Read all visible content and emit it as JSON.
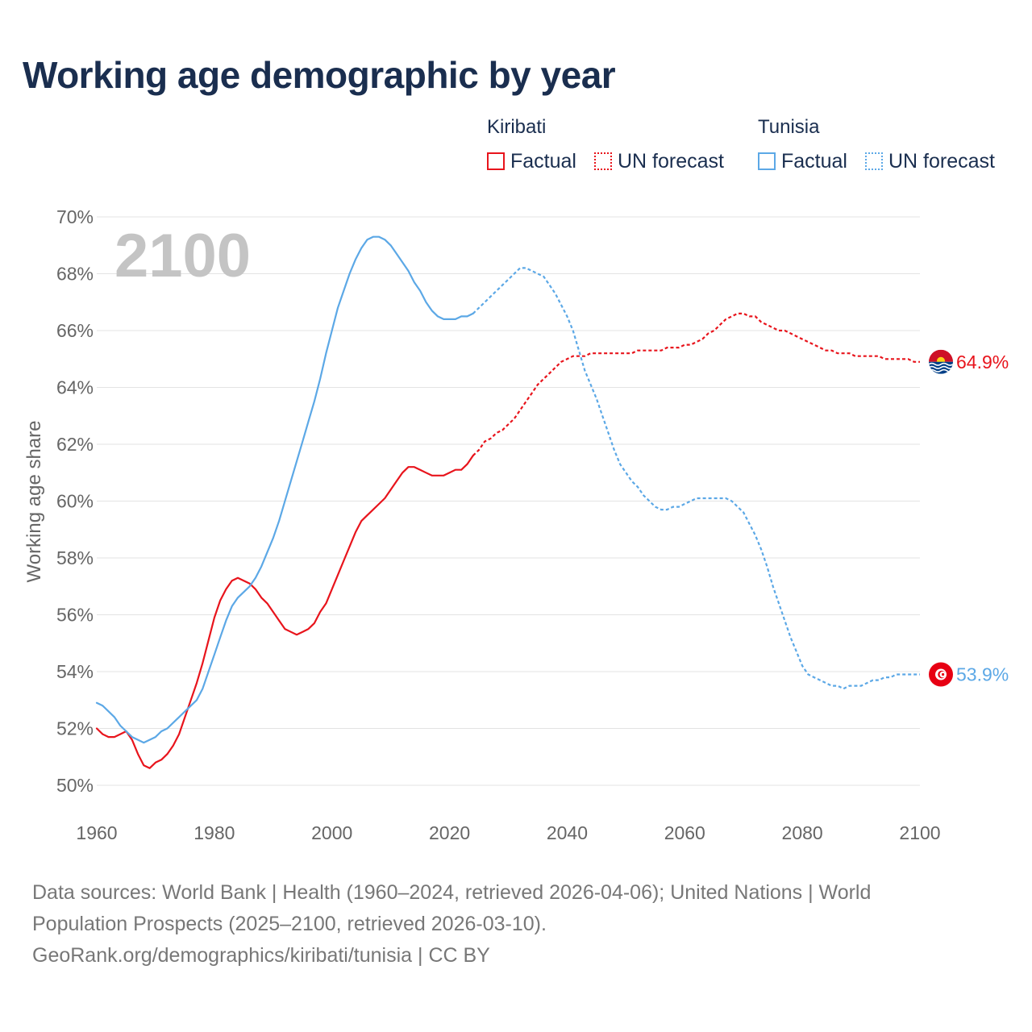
{
  "title": "Working age demographic by year",
  "legend": {
    "groups": [
      {
        "country": "Kiribati",
        "factual_label": "Factual",
        "forecast_label": "UN forecast",
        "color": "#e8141c"
      },
      {
        "country": "Tunisia",
        "factual_label": "Factual",
        "forecast_label": "UN forecast",
        "color": "#5ca8e6"
      }
    ]
  },
  "footer": {
    "line1": "Data sources: World Bank | Health (1960–2024, retrieved 2026-04-06); United Nations | World",
    "line2": "Population Prospects (2025–2100, retrieved 2026-03-10).",
    "line3": "GeoRank.org/demographics/kiribati/tunisia | CC BY"
  },
  "chart_data": {
    "type": "line",
    "title": "Working age demographic by year",
    "ylabel": "Working age share",
    "xlabel": "",
    "year_watermark": "2100",
    "xlim": [
      1960,
      2100
    ],
    "ylim": [
      50,
      70
    ],
    "xticks": [
      "1960",
      "1980",
      "2000",
      "2020",
      "2040",
      "2060",
      "2080",
      "2100"
    ],
    "yticks": [
      "50%",
      "52%",
      "54%",
      "56%",
      "58%",
      "60%",
      "62%",
      "64%",
      "66%",
      "68%",
      "70%"
    ],
    "grid": true,
    "factual_range": [
      1960,
      2024
    ],
    "forecast_range": [
      2025,
      2100
    ],
    "series": [
      {
        "name": "Kiribati",
        "color": "#e8141c",
        "end_label": "64.9%",
        "flag_icon": "kiribati-flag-icon",
        "points": [
          [
            1960,
            52.0
          ],
          [
            1961,
            51.8
          ],
          [
            1962,
            51.7
          ],
          [
            1963,
            51.7
          ],
          [
            1964,
            51.8
          ],
          [
            1965,
            51.9
          ],
          [
            1966,
            51.6
          ],
          [
            1967,
            51.1
          ],
          [
            1968,
            50.7
          ],
          [
            1969,
            50.6
          ],
          [
            1970,
            50.8
          ],
          [
            1971,
            50.9
          ],
          [
            1972,
            51.1
          ],
          [
            1973,
            51.4
          ],
          [
            1974,
            51.8
          ],
          [
            1975,
            52.4
          ],
          [
            1976,
            53.0
          ],
          [
            1977,
            53.6
          ],
          [
            1978,
            54.3
          ],
          [
            1979,
            55.1
          ],
          [
            1980,
            55.9
          ],
          [
            1981,
            56.5
          ],
          [
            1982,
            56.9
          ],
          [
            1983,
            57.2
          ],
          [
            1984,
            57.3
          ],
          [
            1985,
            57.2
          ],
          [
            1986,
            57.1
          ],
          [
            1987,
            56.9
          ],
          [
            1988,
            56.6
          ],
          [
            1989,
            56.4
          ],
          [
            1990,
            56.1
          ],
          [
            1991,
            55.8
          ],
          [
            1992,
            55.5
          ],
          [
            1993,
            55.4
          ],
          [
            1994,
            55.3
          ],
          [
            1995,
            55.4
          ],
          [
            1996,
            55.5
          ],
          [
            1997,
            55.7
          ],
          [
            1998,
            56.1
          ],
          [
            1999,
            56.4
          ],
          [
            2000,
            56.9
          ],
          [
            2001,
            57.4
          ],
          [
            2002,
            57.9
          ],
          [
            2003,
            58.4
          ],
          [
            2004,
            58.9
          ],
          [
            2005,
            59.3
          ],
          [
            2006,
            59.5
          ],
          [
            2007,
            59.7
          ],
          [
            2008,
            59.9
          ],
          [
            2009,
            60.1
          ],
          [
            2010,
            60.4
          ],
          [
            2011,
            60.7
          ],
          [
            2012,
            61.0
          ],
          [
            2013,
            61.2
          ],
          [
            2014,
            61.2
          ],
          [
            2015,
            61.1
          ],
          [
            2016,
            61.0
          ],
          [
            2017,
            60.9
          ],
          [
            2018,
            60.9
          ],
          [
            2019,
            60.9
          ],
          [
            2020,
            61.0
          ],
          [
            2021,
            61.1
          ],
          [
            2022,
            61.1
          ],
          [
            2023,
            61.3
          ],
          [
            2024,
            61.6
          ],
          [
            2025,
            61.8
          ],
          [
            2026,
            62.1
          ],
          [
            2027,
            62.2
          ],
          [
            2028,
            62.4
          ],
          [
            2029,
            62.5
          ],
          [
            2030,
            62.7
          ],
          [
            2031,
            62.9
          ],
          [
            2032,
            63.2
          ],
          [
            2033,
            63.5
          ],
          [
            2034,
            63.8
          ],
          [
            2035,
            64.1
          ],
          [
            2036,
            64.3
          ],
          [
            2037,
            64.5
          ],
          [
            2038,
            64.7
          ],
          [
            2039,
            64.9
          ],
          [
            2040,
            65.0
          ],
          [
            2041,
            65.1
          ],
          [
            2042,
            65.1
          ],
          [
            2043,
            65.1
          ],
          [
            2044,
            65.2
          ],
          [
            2045,
            65.2
          ],
          [
            2046,
            65.2
          ],
          [
            2047,
            65.2
          ],
          [
            2048,
            65.2
          ],
          [
            2049,
            65.2
          ],
          [
            2050,
            65.2
          ],
          [
            2051,
            65.2
          ],
          [
            2052,
            65.3
          ],
          [
            2053,
            65.3
          ],
          [
            2054,
            65.3
          ],
          [
            2055,
            65.3
          ],
          [
            2056,
            65.3
          ],
          [
            2057,
            65.4
          ],
          [
            2058,
            65.4
          ],
          [
            2059,
            65.4
          ],
          [
            2060,
            65.5
          ],
          [
            2061,
            65.5
          ],
          [
            2062,
            65.6
          ],
          [
            2063,
            65.7
          ],
          [
            2064,
            65.9
          ],
          [
            2065,
            66.0
          ],
          [
            2066,
            66.2
          ],
          [
            2067,
            66.4
          ],
          [
            2068,
            66.5
          ],
          [
            2069,
            66.6
          ],
          [
            2070,
            66.6
          ],
          [
            2071,
            66.5
          ],
          [
            2072,
            66.5
          ],
          [
            2073,
            66.3
          ],
          [
            2074,
            66.2
          ],
          [
            2075,
            66.1
          ],
          [
            2076,
            66.0
          ],
          [
            2077,
            66.0
          ],
          [
            2078,
            65.9
          ],
          [
            2079,
            65.8
          ],
          [
            2080,
            65.7
          ],
          [
            2081,
            65.6
          ],
          [
            2082,
            65.5
          ],
          [
            2083,
            65.4
          ],
          [
            2084,
            65.3
          ],
          [
            2085,
            65.3
          ],
          [
            2086,
            65.2
          ],
          [
            2087,
            65.2
          ],
          [
            2088,
            65.2
          ],
          [
            2089,
            65.1
          ],
          [
            2090,
            65.1
          ],
          [
            2091,
            65.1
          ],
          [
            2092,
            65.1
          ],
          [
            2093,
            65.1
          ],
          [
            2094,
            65.0
          ],
          [
            2095,
            65.0
          ],
          [
            2096,
            65.0
          ],
          [
            2097,
            65.0
          ],
          [
            2098,
            65.0
          ],
          [
            2099,
            64.9
          ],
          [
            2100,
            64.9
          ]
        ]
      },
      {
        "name": "Tunisia",
        "color": "#5ca8e6",
        "end_label": "53.9%",
        "flag_icon": "tunisia-flag-icon",
        "points": [
          [
            1960,
            52.9
          ],
          [
            1961,
            52.8
          ],
          [
            1962,
            52.6
          ],
          [
            1963,
            52.4
          ],
          [
            1964,
            52.1
          ],
          [
            1965,
            51.9
          ],
          [
            1966,
            51.7
          ],
          [
            1967,
            51.6
          ],
          [
            1968,
            51.5
          ],
          [
            1969,
            51.6
          ],
          [
            1970,
            51.7
          ],
          [
            1971,
            51.9
          ],
          [
            1972,
            52.0
          ],
          [
            1973,
            52.2
          ],
          [
            1974,
            52.4
          ],
          [
            1975,
            52.6
          ],
          [
            1976,
            52.8
          ],
          [
            1977,
            53.0
          ],
          [
            1978,
            53.4
          ],
          [
            1979,
            54.0
          ],
          [
            1980,
            54.6
          ],
          [
            1981,
            55.2
          ],
          [
            1982,
            55.8
          ],
          [
            1983,
            56.3
          ],
          [
            1984,
            56.6
          ],
          [
            1985,
            56.8
          ],
          [
            1986,
            57.0
          ],
          [
            1987,
            57.3
          ],
          [
            1988,
            57.7
          ],
          [
            1989,
            58.2
          ],
          [
            1990,
            58.7
          ],
          [
            1991,
            59.3
          ],
          [
            1992,
            60.0
          ],
          [
            1993,
            60.7
          ],
          [
            1994,
            61.4
          ],
          [
            1995,
            62.1
          ],
          [
            1996,
            62.8
          ],
          [
            1997,
            63.5
          ],
          [
            1998,
            64.3
          ],
          [
            1999,
            65.2
          ],
          [
            2000,
            66.0
          ],
          [
            2001,
            66.8
          ],
          [
            2002,
            67.4
          ],
          [
            2003,
            68.0
          ],
          [
            2004,
            68.5
          ],
          [
            2005,
            68.9
          ],
          [
            2006,
            69.2
          ],
          [
            2007,
            69.3
          ],
          [
            2008,
            69.3
          ],
          [
            2009,
            69.2
          ],
          [
            2010,
            69.0
          ],
          [
            2011,
            68.7
          ],
          [
            2012,
            68.4
          ],
          [
            2013,
            68.1
          ],
          [
            2014,
            67.7
          ],
          [
            2015,
            67.4
          ],
          [
            2016,
            67.0
          ],
          [
            2017,
            66.7
          ],
          [
            2018,
            66.5
          ],
          [
            2019,
            66.4
          ],
          [
            2020,
            66.4
          ],
          [
            2021,
            66.4
          ],
          [
            2022,
            66.5
          ],
          [
            2023,
            66.5
          ],
          [
            2024,
            66.6
          ],
          [
            2025,
            66.8
          ],
          [
            2026,
            67.0
          ],
          [
            2027,
            67.2
          ],
          [
            2028,
            67.4
          ],
          [
            2029,
            67.6
          ],
          [
            2030,
            67.8
          ],
          [
            2031,
            68.0
          ],
          [
            2032,
            68.2
          ],
          [
            2033,
            68.2
          ],
          [
            2034,
            68.1
          ],
          [
            2035,
            68.0
          ],
          [
            2036,
            67.9
          ],
          [
            2037,
            67.6
          ],
          [
            2038,
            67.3
          ],
          [
            2039,
            66.9
          ],
          [
            2040,
            66.5
          ],
          [
            2041,
            66.0
          ],
          [
            2042,
            65.3
          ],
          [
            2043,
            64.6
          ],
          [
            2044,
            64.1
          ],
          [
            2045,
            63.6
          ],
          [
            2046,
            63.0
          ],
          [
            2047,
            62.4
          ],
          [
            2048,
            61.8
          ],
          [
            2049,
            61.3
          ],
          [
            2050,
            61.0
          ],
          [
            2051,
            60.7
          ],
          [
            2052,
            60.5
          ],
          [
            2053,
            60.2
          ],
          [
            2054,
            60.0
          ],
          [
            2055,
            59.8
          ],
          [
            2056,
            59.7
          ],
          [
            2057,
            59.7
          ],
          [
            2058,
            59.8
          ],
          [
            2059,
            59.8
          ],
          [
            2060,
            59.9
          ],
          [
            2061,
            60.0
          ],
          [
            2062,
            60.1
          ],
          [
            2063,
            60.1
          ],
          [
            2064,
            60.1
          ],
          [
            2065,
            60.1
          ],
          [
            2066,
            60.1
          ],
          [
            2067,
            60.1
          ],
          [
            2068,
            60.0
          ],
          [
            2069,
            59.8
          ],
          [
            2070,
            59.6
          ],
          [
            2071,
            59.2
          ],
          [
            2072,
            58.8
          ],
          [
            2073,
            58.3
          ],
          [
            2074,
            57.7
          ],
          [
            2075,
            57.0
          ],
          [
            2076,
            56.4
          ],
          [
            2077,
            55.8
          ],
          [
            2078,
            55.2
          ],
          [
            2079,
            54.7
          ],
          [
            2080,
            54.2
          ],
          [
            2081,
            53.9
          ],
          [
            2082,
            53.8
          ],
          [
            2083,
            53.7
          ],
          [
            2084,
            53.6
          ],
          [
            2085,
            53.5
          ],
          [
            2086,
            53.5
          ],
          [
            2087,
            53.4
          ],
          [
            2088,
            53.5
          ],
          [
            2089,
            53.5
          ],
          [
            2090,
            53.5
          ],
          [
            2091,
            53.6
          ],
          [
            2092,
            53.7
          ],
          [
            2093,
            53.7
          ],
          [
            2094,
            53.8
          ],
          [
            2095,
            53.8
          ],
          [
            2096,
            53.9
          ],
          [
            2097,
            53.9
          ],
          [
            2098,
            53.9
          ],
          [
            2099,
            53.9
          ],
          [
            2100,
            53.9
          ]
        ]
      }
    ]
  }
}
